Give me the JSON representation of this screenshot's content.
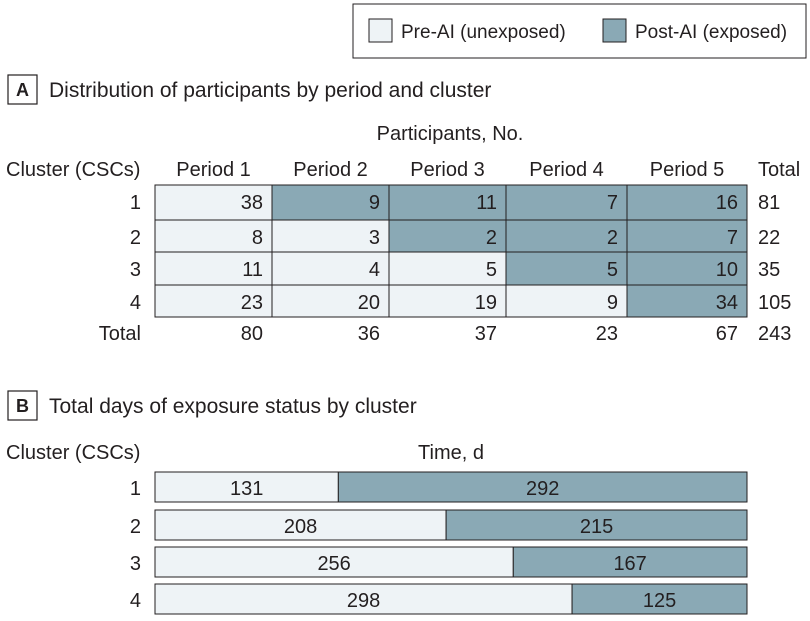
{
  "legend": {
    "items": [
      {
        "label": "Pre-AI (unexposed)",
        "color": "#eef3f6"
      },
      {
        "label": "Post-AI (exposed)",
        "color": "#8aa9b5"
      }
    ]
  },
  "panel_a": {
    "letter": "A",
    "title": "Distribution of participants by period and cluster",
    "header_group": "Participants, No.",
    "row_header": "Cluster (CSCs)",
    "total_header": "Total",
    "total_row_label": "Total"
  },
  "panel_b": {
    "letter": "B",
    "title": "Total days of exposure status by cluster",
    "row_header": "Cluster (CSCs)",
    "axis_label": "Time, d"
  },
  "chart_data": [
    {
      "type": "table",
      "title": "Distribution of participants by period and cluster",
      "columns": [
        "Period 1",
        "Period 2",
        "Period 3",
        "Period 4",
        "Period 5"
      ],
      "rows": [
        "1",
        "2",
        "3",
        "4"
      ],
      "values": [
        [
          38,
          9,
          11,
          7,
          16
        ],
        [
          8,
          3,
          2,
          2,
          7
        ],
        [
          11,
          4,
          5,
          5,
          10
        ],
        [
          23,
          20,
          19,
          9,
          34
        ]
      ],
      "exposed": [
        [
          false,
          true,
          true,
          true,
          true
        ],
        [
          false,
          false,
          true,
          true,
          true
        ],
        [
          false,
          false,
          false,
          true,
          true
        ],
        [
          false,
          false,
          false,
          false,
          true
        ]
      ],
      "row_totals": [
        81,
        22,
        35,
        105
      ],
      "column_totals": [
        80,
        36,
        37,
        23,
        67
      ],
      "grand_total": 243
    },
    {
      "type": "bar",
      "orientation": "horizontal",
      "stacked": true,
      "title": "Total days of exposure status by cluster",
      "xlabel": "Time, d",
      "ylabel": "Cluster (CSCs)",
      "categories": [
        "1",
        "2",
        "3",
        "4"
      ],
      "series": [
        {
          "name": "Pre-AI (unexposed)",
          "values": [
            131,
            208,
            256,
            298
          ]
        },
        {
          "name": "Post-AI (exposed)",
          "values": [
            292,
            215,
            167,
            125
          ]
        }
      ]
    }
  ]
}
